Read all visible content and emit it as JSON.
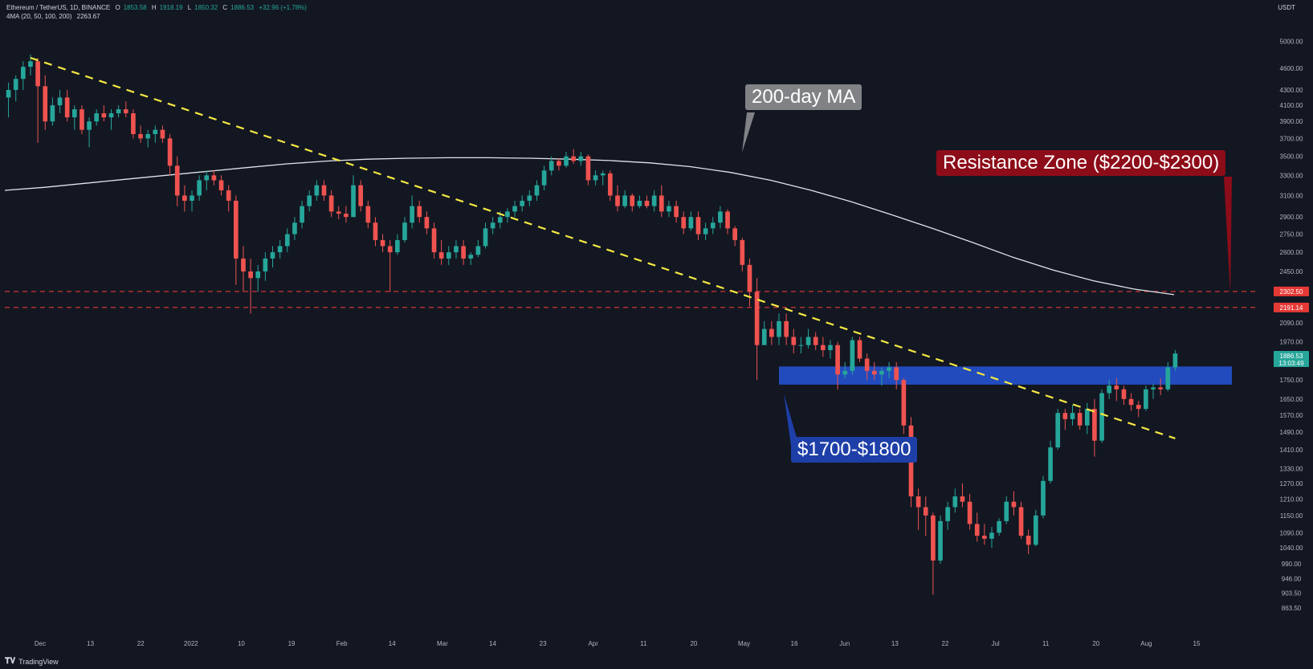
{
  "header": {
    "symbol": "Ethereum / TetherUS, 1D, BINANCE",
    "o_label": "O",
    "o": "1853.58",
    "h_label": "H",
    "h": "1918.19",
    "l_label": "L",
    "l": "1850.32",
    "c_label": "C",
    "c": "1886.53",
    "change": "+32.96 (+1.78%)",
    "ma_label": "4MA (20, 50, 100, 200)",
    "ma_value": "2263.67"
  },
  "price_axis": {
    "unit": "USDT",
    "ticks": [
      "5000.00",
      "4600.00",
      "4300.00",
      "4100.00",
      "3900.00",
      "3700.00",
      "3500.00",
      "3300.00",
      "3100.00",
      "2900.00",
      "2750.00",
      "2600.00",
      "2450.00",
      "2302.50",
      "2191.14",
      "2090.00",
      "1970.00",
      "1886.53",
      "1750.00",
      "1650.00",
      "1570.00",
      "1490.00",
      "1410.00",
      "1330.00",
      "1270.00",
      "1210.00",
      "1150.00",
      "1090.00",
      "1040.00",
      "990.00",
      "946.00",
      "903.50",
      "863.50"
    ],
    "current_price_label": "1886.53",
    "countdown_label": "13:03:49",
    "resistance_top_label": "2302.50",
    "resistance_bottom_label": "2191.14"
  },
  "time_axis": {
    "labels": [
      "Dec",
      "13",
      "22",
      "2022",
      "10",
      "19",
      "Feb",
      "14",
      "Mar",
      "14",
      "23",
      "Apr",
      "11",
      "20",
      "May",
      "16",
      "Jun",
      "13",
      "22",
      "Jul",
      "11",
      "20",
      "Aug",
      "15"
    ]
  },
  "annotations": {
    "ma_callout": "200-day MA",
    "resistance_callout": "Resistance Zone ($2200-$2300)",
    "support_callout": "$1700-$1800"
  },
  "footer": {
    "brand": "TradingView"
  },
  "colors": {
    "background": "#131722",
    "up": "#26a69a",
    "down": "#ef5350",
    "trendline": "#f5e942",
    "ma_line": "#e0e3eb",
    "resistance": "#e53935",
    "support_zone": "#2962ff"
  },
  "chart_data": {
    "type": "candlestick",
    "scale": "log",
    "y_range": [
      840,
      5300
    ],
    "price_levels": {
      "resistance_upper": 2302.5,
      "resistance_lower": 2191.14,
      "support_zone": [
        1725,
        1825
      ]
    },
    "ohlc_keys": [
      "o",
      "h",
      "l",
      "c"
    ],
    "ohlc": [
      [
        4200,
        4400,
        3950,
        4300
      ],
      [
        4300,
        4500,
        4150,
        4450
      ],
      [
        4450,
        4700,
        4300,
        4620
      ],
      [
        4620,
        4800,
        4500,
        4700
      ],
      [
        4700,
        4750,
        3650,
        4350
      ],
      [
        4350,
        4500,
        3800,
        3900
      ],
      [
        3900,
        4200,
        3850,
        4100
      ],
      [
        4100,
        4300,
        4000,
        4200
      ],
      [
        4200,
        4300,
        3900,
        3950
      ],
      [
        3950,
        4100,
        3800,
        4050
      ],
      [
        4050,
        4100,
        3750,
        3800
      ],
      [
        3800,
        3950,
        3600,
        3900
      ],
      [
        3900,
        4050,
        3850,
        4000
      ],
      [
        4000,
        4100,
        3900,
        3950
      ],
      [
        3950,
        4050,
        3800,
        4000
      ],
      [
        4000,
        4100,
        3950,
        4050
      ],
      [
        4050,
        4150,
        3950,
        4000
      ],
      [
        4000,
        4050,
        3700,
        3750
      ],
      [
        3750,
        3850,
        3650,
        3700
      ],
      [
        3700,
        3800,
        3600,
        3750
      ],
      [
        3750,
        3850,
        3650,
        3800
      ],
      [
        3800,
        3850,
        3650,
        3700
      ],
      [
        3700,
        3750,
        3300,
        3400
      ],
      [
        3400,
        3500,
        3000,
        3100
      ],
      [
        3100,
        3200,
        2950,
        3050
      ],
      [
        3050,
        3150,
        2950,
        3100
      ],
      [
        3100,
        3300,
        3050,
        3250
      ],
      [
        3250,
        3350,
        3150,
        3300
      ],
      [
        3300,
        3350,
        3200,
        3250
      ],
      [
        3250,
        3300,
        3100,
        3150
      ],
      [
        3150,
        3200,
        2950,
        3050
      ],
      [
        3050,
        3100,
        2350,
        2550
      ],
      [
        2550,
        2650,
        2300,
        2450
      ],
      [
        2450,
        2550,
        2150,
        2400
      ],
      [
        2400,
        2500,
        2300,
        2450
      ],
      [
        2450,
        2600,
        2380,
        2550
      ],
      [
        2550,
        2650,
        2480,
        2600
      ],
      [
        2600,
        2700,
        2550,
        2650
      ],
      [
        2650,
        2800,
        2600,
        2750
      ],
      [
        2750,
        2900,
        2700,
        2850
      ],
      [
        2850,
        3050,
        2800,
        3000
      ],
      [
        3000,
        3150,
        2950,
        3100
      ],
      [
        3100,
        3250,
        3050,
        3200
      ],
      [
        3200,
        3250,
        3050,
        3100
      ],
      [
        3100,
        3150,
        2900,
        2950
      ],
      [
        2950,
        3000,
        2880,
        2930
      ],
      [
        2930,
        3000,
        2850,
        2900
      ],
      [
        2900,
        3300,
        2900,
        3200
      ],
      [
        3200,
        3250,
        2950,
        3000
      ],
      [
        3000,
        3050,
        2800,
        2850
      ],
      [
        2850,
        2900,
        2650,
        2700
      ],
      [
        2700,
        2750,
        2600,
        2650
      ],
      [
        2650,
        2700,
        2300,
        2600
      ],
      [
        2600,
        2750,
        2580,
        2700
      ],
      [
        2700,
        2900,
        2680,
        2850
      ],
      [
        2850,
        3100,
        2800,
        3000
      ],
      [
        3000,
        3050,
        2850,
        2900
      ],
      [
        2900,
        2950,
        2750,
        2800
      ],
      [
        2800,
        2850,
        2550,
        2600
      ],
      [
        2600,
        2700,
        2500,
        2550
      ],
      [
        2550,
        2650,
        2500,
        2600
      ],
      [
        2600,
        2700,
        2550,
        2650
      ],
      [
        2650,
        2700,
        2500,
        2550
      ],
      [
        2550,
        2600,
        2500,
        2580
      ],
      [
        2580,
        2700,
        2560,
        2650
      ],
      [
        2650,
        2850,
        2630,
        2800
      ],
      [
        2800,
        2900,
        2750,
        2850
      ],
      [
        2850,
        2950,
        2800,
        2900
      ],
      [
        2900,
        2980,
        2850,
        2950
      ],
      [
        2950,
        3050,
        2900,
        3000
      ],
      [
        3000,
        3100,
        2950,
        3050
      ],
      [
        3050,
        3150,
        3000,
        3100
      ],
      [
        3100,
        3250,
        3050,
        3200
      ],
      [
        3200,
        3400,
        3150,
        3350
      ],
      [
        3350,
        3500,
        3300,
        3450
      ],
      [
        3450,
        3480,
        3350,
        3400
      ],
      [
        3400,
        3550,
        3380,
        3500
      ],
      [
        3500,
        3580,
        3420,
        3450
      ],
      [
        3450,
        3550,
        3400,
        3500
      ],
      [
        3500,
        3520,
        3200,
        3250
      ],
      [
        3250,
        3350,
        3200,
        3300
      ],
      [
        3300,
        3350,
        3200,
        3320
      ],
      [
        3320,
        3350,
        3050,
        3100
      ],
      [
        3100,
        3200,
        2950,
        3000
      ],
      [
        3000,
        3150,
        2980,
        3100
      ],
      [
        3100,
        3120,
        2950,
        3000
      ],
      [
        3000,
        3100,
        2980,
        3050
      ],
      [
        3050,
        3100,
        2980,
        3000
      ],
      [
        3000,
        3150,
        2950,
        3100
      ],
      [
        3100,
        3200,
        2900,
        2950
      ],
      [
        2950,
        3050,
        2900,
        3000
      ],
      [
        3000,
        3050,
        2850,
        2900
      ],
      [
        2900,
        2950,
        2750,
        2800
      ],
      [
        2800,
        2950,
        2780,
        2900
      ],
      [
        2900,
        2950,
        2700,
        2750
      ],
      [
        2750,
        2850,
        2700,
        2800
      ],
      [
        2800,
        2900,
        2750,
        2850
      ],
      [
        2850,
        3000,
        2800,
        2950
      ],
      [
        2950,
        2970,
        2750,
        2800
      ],
      [
        2800,
        2820,
        2650,
        2700
      ],
      [
        2700,
        2720,
        2450,
        2500
      ],
      [
        2500,
        2550,
        2200,
        2300
      ],
      [
        2300,
        2400,
        1750,
        1950
      ],
      [
        1950,
        2100,
        1950,
        2050
      ],
      [
        2050,
        2100,
        1950,
        2000
      ],
      [
        2000,
        2150,
        1950,
        2100
      ],
      [
        2100,
        2150,
        1950,
        2000
      ],
      [
        2000,
        2050,
        1900,
        1950
      ],
      [
        1950,
        2000,
        1900,
        1950
      ],
      [
        1950,
        2050,
        1930,
        2000
      ],
      [
        2000,
        2030,
        1920,
        1950
      ],
      [
        1950,
        2000,
        1880,
        1920
      ],
      [
        1920,
        1980,
        1870,
        1950
      ],
      [
        1950,
        1970,
        1700,
        1780
      ],
      [
        1780,
        1850,
        1760,
        1800
      ],
      [
        1800,
        2000,
        1780,
        1980
      ],
      [
        1980,
        2000,
        1850,
        1870
      ],
      [
        1870,
        1900,
        1750,
        1800
      ],
      [
        1800,
        1850,
        1750,
        1780
      ],
      [
        1780,
        1820,
        1720,
        1800
      ],
      [
        1800,
        1850,
        1760,
        1820
      ],
      [
        1820,
        1850,
        1700,
        1750
      ],
      [
        1750,
        1760,
        1480,
        1520
      ],
      [
        1520,
        1560,
        1180,
        1220
      ],
      [
        1220,
        1250,
        1100,
        1180
      ],
      [
        1180,
        1220,
        1080,
        1150
      ],
      [
        1150,
        1160,
        900,
        1000
      ],
      [
        1000,
        1150,
        990,
        1130
      ],
      [
        1130,
        1200,
        1100,
        1180
      ],
      [
        1180,
        1250,
        1160,
        1220
      ],
      [
        1220,
        1270,
        1180,
        1200
      ],
      [
        1200,
        1230,
        1100,
        1120
      ],
      [
        1120,
        1160,
        1060,
        1080
      ],
      [
        1080,
        1120,
        1050,
        1070
      ],
      [
        1070,
        1110,
        1040,
        1090
      ],
      [
        1090,
        1140,
        1080,
        1130
      ],
      [
        1130,
        1220,
        1120,
        1200
      ],
      [
        1200,
        1240,
        1150,
        1180
      ],
      [
        1180,
        1200,
        1070,
        1080
      ],
      [
        1080,
        1100,
        1020,
        1050
      ],
      [
        1050,
        1170,
        1045,
        1150
      ],
      [
        1150,
        1300,
        1140,
        1280
      ],
      [
        1280,
        1450,
        1270,
        1420
      ],
      [
        1420,
        1600,
        1410,
        1580
      ],
      [
        1580,
        1600,
        1500,
        1550
      ],
      [
        1550,
        1620,
        1520,
        1580
      ],
      [
        1580,
        1600,
        1500,
        1520
      ],
      [
        1520,
        1630,
        1480,
        1600
      ],
      [
        1600,
        1650,
        1380,
        1450
      ],
      [
        1450,
        1700,
        1440,
        1680
      ],
      [
        1680,
        1750,
        1650,
        1720
      ],
      [
        1720,
        1760,
        1640,
        1700
      ],
      [
        1700,
        1720,
        1620,
        1650
      ],
      [
        1650,
        1680,
        1590,
        1620
      ],
      [
        1620,
        1640,
        1560,
        1600
      ],
      [
        1600,
        1720,
        1590,
        1700
      ],
      [
        1700,
        1730,
        1650,
        1710
      ],
      [
        1710,
        1760,
        1670,
        1700
      ],
      [
        1700,
        1850,
        1690,
        1820
      ],
      [
        1820,
        1920,
        1800,
        1900
      ]
    ],
    "ma200": [
      3150,
      3180,
      3220,
      3260,
      3300,
      3340,
      3380,
      3420,
      3450,
      3470,
      3480,
      3485,
      3485,
      3480,
      3470,
      3455,
      3430,
      3390,
      3330,
      3250,
      3150,
      3040,
      2920,
      2800,
      2680,
      2560,
      2460,
      2380,
      2320,
      2280
    ]
  }
}
